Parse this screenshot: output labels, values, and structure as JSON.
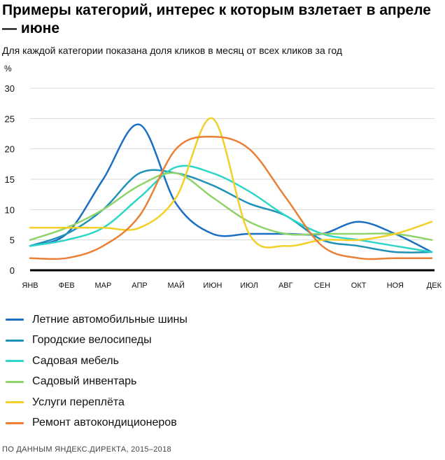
{
  "title": "Примеры категорий, интерес к которым взлетает в апреле — июне",
  "subtitle": "Для каждой категории показана доля кликов в месяц от всех кликов за год",
  "source": "ПО ДАННЫМ ЯНДЕКС.ДИРЕКТА, 2015–2018",
  "chart_data": {
    "type": "line",
    "title": "Примеры категорий, интерес к которым взлетает в апреле — июне",
    "subtitle": "Для каждой категории показана доля кликов в месяц от всех кликов за год",
    "ylabel": "%",
    "ylim": [
      0,
      30
    ],
    "yticks": [
      0,
      5,
      10,
      15,
      20,
      25,
      30
    ],
    "grid": true,
    "legend_position": "bottom",
    "categories": [
      "ЯНВ",
      "ФЕВ",
      "МАР",
      "АПР",
      "МАЙ",
      "ИЮН",
      "ИЮЛ",
      "АВГ",
      "СЕН",
      "ОКТ",
      "НОЯ",
      "ДЕК"
    ],
    "series": [
      {
        "name": "Летние автомобильные шины",
        "color": "#1a6fc4",
        "values": [
          4,
          6,
          15,
          24,
          11,
          6,
          6,
          6,
          6,
          8,
          6,
          3
        ]
      },
      {
        "name": "Городские велосипеды",
        "color": "#1f92b8",
        "values": [
          4,
          6,
          10,
          16,
          16,
          14,
          11,
          9,
          5,
          4,
          3,
          3
        ]
      },
      {
        "name": "Садовая мебель",
        "color": "#2dd6c8",
        "values": [
          4,
          5,
          7,
          12,
          17,
          16,
          13,
          9,
          6,
          5,
          4,
          3
        ]
      },
      {
        "name": "Садовый инвентарь",
        "color": "#8fd46a",
        "values": [
          5,
          7,
          10,
          14,
          16,
          12,
          8,
          6,
          6,
          6,
          6,
          5
        ]
      },
      {
        "name": "Услуги переплёта",
        "color": "#f2d027",
        "values": [
          7,
          7,
          7,
          7,
          12,
          25,
          6,
          4,
          5,
          5,
          6,
          8
        ]
      },
      {
        "name": "Ремонт автокондиционеров",
        "color": "#eb7f36",
        "values": [
          2,
          2,
          4,
          9,
          20,
          22,
          20,
          12,
          4,
          2,
          2,
          2
        ]
      }
    ]
  }
}
